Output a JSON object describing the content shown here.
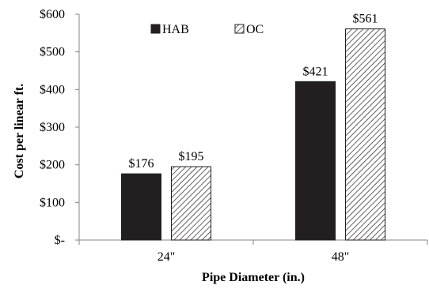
{
  "chart_data": {
    "type": "bar",
    "categories": [
      "24\"",
      "48\""
    ],
    "series": [
      {
        "name": "HAB",
        "values": [
          176,
          421
        ],
        "labels": [
          "$176",
          "$421"
        ],
        "fill": "solid",
        "color": "#231f20"
      },
      {
        "name": "OC",
        "values": [
          195,
          561
        ],
        "labels": [
          "$195",
          "$561"
        ],
        "fill": "hatched",
        "color": "#231f20"
      }
    ],
    "xlabel": "Pipe Diameter (in.)",
    "ylabel": "Cost per linear ft.",
    "ylim": [
      0,
      600
    ],
    "yticks": [
      0,
      100,
      200,
      300,
      400,
      500,
      600
    ],
    "ytick_labels": [
      "$-",
      "$100",
      "$200",
      "$300",
      "$400",
      "$500",
      "$600"
    ],
    "legend_position": "top-center",
    "grid": false
  }
}
